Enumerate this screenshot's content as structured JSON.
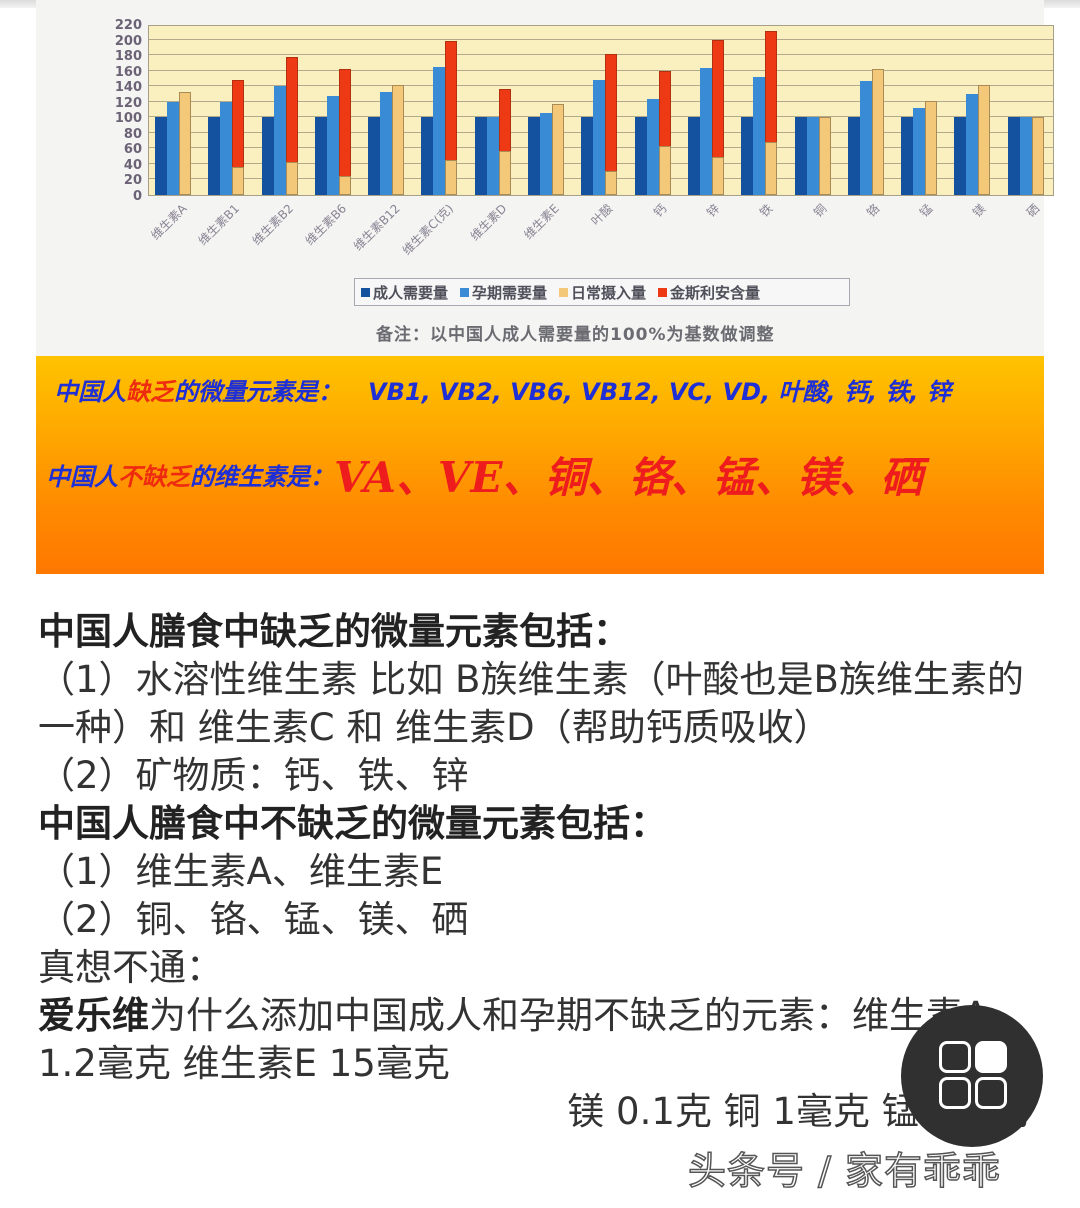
{
  "chart_data": {
    "type": "bar",
    "title": "",
    "xlabel": "",
    "ylabel": "",
    "ylim": [
      0,
      220
    ],
    "yticks": [
      0,
      20,
      40,
      60,
      80,
      100,
      120,
      140,
      160,
      180,
      200,
      220
    ],
    "grid": true,
    "legend_position": "bottom",
    "categories": [
      "维生素A",
      "维生素B1",
      "维生素B2",
      "维生素B6",
      "维生素B12",
      "维生素C(克)",
      "维生素D",
      "维生素E",
      "叶酸",
      "钙",
      "锌",
      "铁",
      "铜",
      "铬",
      "锰",
      "镁",
      "硒"
    ],
    "series": [
      {
        "name": "成人需要量",
        "color": "#1452a0",
        "values": [
          100,
          100,
          100,
          100,
          100,
          100,
          100,
          100,
          100,
          100,
          100,
          100,
          100,
          100,
          100,
          100,
          100
        ]
      },
      {
        "name": "孕期需要量",
        "color": "#3a8bd6",
        "values": [
          120,
          120,
          140,
          127,
          132,
          165,
          100,
          105,
          148,
          123,
          164,
          152,
          100,
          147,
          112,
          130,
          100
        ]
      },
      {
        "name": "日常摄入量",
        "color": "#f3c979",
        "values": [
          133,
          36,
          42,
          25,
          141,
          45,
          56,
          117,
          31,
          63,
          49,
          68,
          100,
          162,
          121,
          142,
          100
        ]
      },
      {
        "name": "金斯利安含量",
        "color": "#ee3a14",
        "values": [
          null,
          148,
          178,
          162,
          null,
          198,
          136,
          null,
          181,
          160,
          199,
          211,
          null,
          null,
          null,
          null,
          null
        ]
      }
    ],
    "note": "备注：以中国人成人需要量的100%为基数做调整"
  },
  "banner": {
    "line1_prefix": "中国人",
    "line1_highlight": "缺乏",
    "line1_suffix": "的微量元素是：",
    "line1_values": "VB1, VB2, VB6, VB12, VC, VD, 叶酸, 钙, 铁, 锌",
    "line2_prefix": "中国人",
    "line2_highlight": "不缺乏",
    "line2_suffix": "的维生素是：",
    "line2_values": "VA、VE、铜、铬、锰、镁、硒"
  },
  "article": {
    "heading1": "中国人膳食中缺乏的微量元素包括：",
    "item1_1": "（1）水溶性维生素 比如 B族维生素（叶酸也是B族维生素的一种）和 维生素C 和 维生素D（帮助钙质吸收）",
    "item1_2": "（2）矿物质：钙、铁、锌",
    "heading2": "中国人膳食中不缺乏的微量元素包括：",
    "item2_1": "（1）维生素A、维生素E",
    "item2_2": "（2）铜、铬、锰、镁、硒",
    "puzzle": "真想不通：",
    "brand": "爱乐维",
    "question": "为什么添加中国成人和孕期不缺乏的元素：维生素A 1.2毫克  维生素E 15毫克",
    "dosage": "镁 0.1克 铜 1毫克 锰 1毫克"
  },
  "watermark": "头条号 / 家有乖乖",
  "fab": {
    "icon": "grid-menu-icon"
  }
}
